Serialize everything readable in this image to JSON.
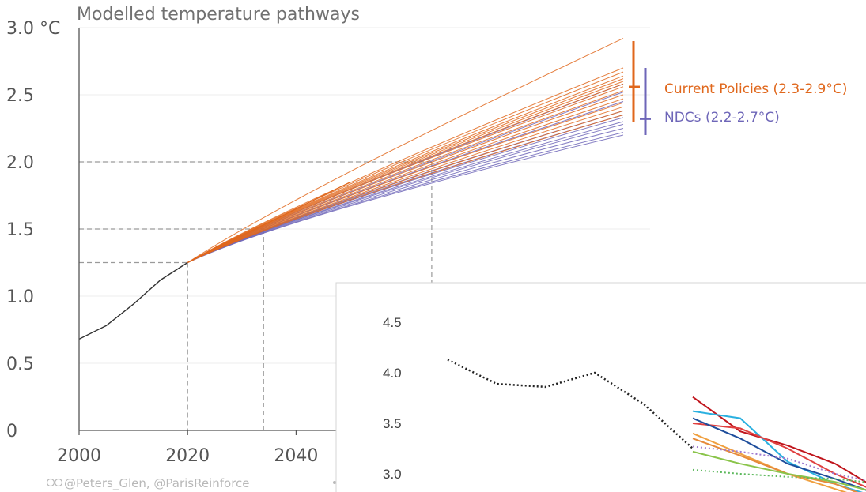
{
  "chart_data": [
    {
      "type": "line",
      "title": "Modelled temperature pathways",
      "y_unit": "°C",
      "x_range": [
        2000,
        2100
      ],
      "y_range": [
        0,
        3.0
      ],
      "x_ticks": [
        2000,
        2020,
        2040
      ],
      "y_ticks": [
        0,
        0.5,
        1.0,
        1.5,
        2.0,
        2.5,
        3.0
      ],
      "y_tick_labels": [
        "0",
        "0.5",
        "1.0",
        "1.5",
        "2.0",
        "2.5",
        "3.0 °C"
      ],
      "colors": {
        "historical": "#333333",
        "current_policies": "#e0671c",
        "ndcs": "#6e66b8",
        "guides": "#9a9a9a"
      },
      "historical": {
        "x": [
          2000,
          2005,
          2010,
          2015,
          2020
        ],
        "y": [
          0.68,
          0.78,
          0.94,
          1.12,
          1.25
        ]
      },
      "reference_lines": [
        {
          "temperature": 1.25,
          "year": 2020
        },
        {
          "temperature": 1.5,
          "year": 2034
        },
        {
          "temperature": 2.0,
          "year": 2065
        }
      ],
      "current_policies": {
        "label": "Current Policies (2.3-2.9°C)",
        "range": [
          2.3,
          2.9
        ],
        "median": 2.56,
        "end_values_2100": [
          2.92,
          2.7,
          2.67,
          2.64,
          2.62,
          2.6,
          2.58,
          2.56,
          2.53,
          2.5,
          2.47,
          2.44,
          2.41,
          2.38,
          2.35
        ],
        "short_pathway_end": {
          "x": 2050,
          "y": 1.85
        }
      },
      "ndcs": {
        "label": "NDCs (2.2-2.7°C)",
        "range": [
          2.2,
          2.7
        ],
        "median": 2.32,
        "end_values_2100": [
          2.58,
          2.52,
          2.45,
          2.38,
          2.35,
          2.33,
          2.3,
          2.28,
          2.25,
          2.22,
          2.2
        ]
      },
      "credit": "@Peters_Glen, @ParisReinforce"
    },
    {
      "type": "line",
      "y_ticks": [
        3.0,
        3.5,
        4.0,
        4.5
      ],
      "y_tick_labels": [
        "3.0",
        "3.5",
        "4.0",
        "4.5"
      ],
      "historical_dotted": {
        "color": "#222222",
        "x": [
          0,
          1,
          2,
          3,
          4,
          5
        ],
        "y": [
          4.13,
          3.89,
          3.86,
          4.0,
          3.69,
          3.25
        ]
      },
      "series": [
        {
          "color": "#c0161d",
          "y": [
            3.76,
            3.42,
            3.28,
            3.1,
            2.82
          ]
        },
        {
          "color": "#2ab0e0",
          "y": [
            3.62,
            3.55,
            3.12,
            2.9,
            2.75
          ]
        },
        {
          "color": "#e04040",
          "y": [
            3.5,
            3.45,
            3.25,
            3.0,
            2.8
          ]
        },
        {
          "color": "#1f4e9c",
          "y": [
            3.55,
            3.35,
            3.1,
            2.95,
            2.78
          ]
        },
        {
          "color": "#f0a040",
          "y": [
            3.4,
            3.2,
            3.0,
            2.85,
            2.7
          ]
        },
        {
          "color": "#e58a3a",
          "y": [
            3.35,
            3.18,
            3.0,
            2.9,
            2.72
          ]
        },
        {
          "color": "#8ac44a",
          "y": [
            3.22,
            3.1,
            3.0,
            2.92,
            2.8
          ]
        },
        {
          "color": "#a07ad0",
          "dashed": true,
          "y": [
            3.27,
            3.22,
            3.15,
            3.0,
            2.9
          ]
        },
        {
          "color": "#5cb85c",
          "dashed": true,
          "y": [
            3.04,
            3.0,
            2.97,
            2.95,
            2.9
          ]
        }
      ]
    }
  ]
}
